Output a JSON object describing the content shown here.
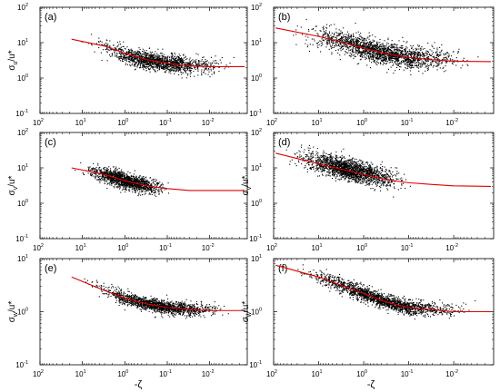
{
  "figure": {
    "xlabel_left": "-ζ",
    "xlabel_right": "-ζ"
  },
  "chart_data": [
    {
      "type": "scatter",
      "panel": "(a)",
      "ylabel": "σu/u*",
      "y_main": "σ",
      "y_sub": "u",
      "y_rest": "/u*",
      "xlabel": "",
      "x_scale": "log",
      "x_reversed": true,
      "xlim": [
        100,
        0.0013
      ],
      "y_scale": "log",
      "ylim": [
        0.1,
        100
      ],
      "x_ticks": [
        {
          "v": 100,
          "m": "10",
          "e": "2"
        },
        {
          "v": 10,
          "m": "10",
          "e": "1"
        },
        {
          "v": 1,
          "m": "10",
          "e": "0"
        },
        {
          "v": 0.1,
          "m": "10",
          "e": "-1"
        },
        {
          "v": 0.01,
          "m": "10",
          "e": "-2"
        }
      ],
      "y_ticks": [
        {
          "v": 0.1,
          "m": "10",
          "e": "-1"
        },
        {
          "v": 1,
          "m": "10",
          "e": "0"
        },
        {
          "v": 10,
          "m": "10",
          "e": "1"
        },
        {
          "v": 100,
          "m": "10",
          "e": "2"
        }
      ],
      "scatter": {
        "x_range": [
          18,
          0.0015
        ],
        "trend": [
          [
            18,
            13
          ],
          [
            3,
            8
          ],
          [
            1,
            4.5
          ],
          [
            0.3,
            3.2
          ],
          [
            0.1,
            2.6
          ],
          [
            0.03,
            2.2
          ],
          [
            0.0015,
            2.1
          ]
        ],
        "spread_decades": 0.12,
        "count": 1600
      },
      "fit": {
        "color": "#e00000",
        "x": [
          18,
          3,
          1,
          0.3,
          0.1,
          0.03,
          0.01,
          0.0015
        ],
        "y": [
          12.5,
          8,
          5,
          3.3,
          2.6,
          2.2,
          2.1,
          2.1
        ]
      }
    },
    {
      "type": "scatter",
      "panel": "(b)",
      "ylabel": "",
      "x_scale": "log",
      "x_reversed": true,
      "xlim": [
        100,
        0.0013
      ],
      "y_scale": "log",
      "ylim": [
        0.1,
        100
      ],
      "x_ticks": [
        {
          "v": 100,
          "m": "10",
          "e": "2"
        },
        {
          "v": 10,
          "m": "10",
          "e": "1"
        },
        {
          "v": 1,
          "m": "10",
          "e": "0"
        },
        {
          "v": 0.1,
          "m": "10",
          "e": "-1"
        },
        {
          "v": 0.01,
          "m": "10",
          "e": "-2"
        }
      ],
      "y_ticks": [
        {
          "v": 0.1,
          "m": "10",
          "e": "-1"
        },
        {
          "v": 1,
          "m": "10",
          "e": "0"
        },
        {
          "v": 10,
          "m": "10",
          "e": "1"
        },
        {
          "v": 100,
          "m": "10",
          "e": "2"
        }
      ],
      "scatter": {
        "x_range": [
          90,
          0.0015
        ],
        "trend": [
          [
            90,
            30
          ],
          [
            10,
            16
          ],
          [
            1,
            7
          ],
          [
            0.3,
            4.8
          ],
          [
            0.1,
            3.8
          ],
          [
            0.03,
            3.3
          ],
          [
            0.0015,
            3.0
          ]
        ],
        "spread_decades": 0.16,
        "count": 2000
      },
      "fit": {
        "color": "#e00000",
        "x": [
          90,
          10,
          1,
          0.3,
          0.1,
          0.03,
          0.01,
          0.0015
        ],
        "y": [
          26,
          15,
          7,
          4.8,
          3.8,
          3.3,
          3.0,
          2.9
        ]
      }
    },
    {
      "type": "scatter",
      "panel": "(c)",
      "ylabel": "σv/u*",
      "y_main": "σ",
      "y_sub": "v",
      "y_rest": "/u*",
      "x_scale": "log",
      "x_reversed": true,
      "xlim": [
        100,
        0.0013
      ],
      "y_scale": "log",
      "ylim": [
        0.1,
        100
      ],
      "x_ticks": [
        {
          "v": 100,
          "m": "10",
          "e": "2"
        },
        {
          "v": 10,
          "m": "10",
          "e": "1"
        },
        {
          "v": 1,
          "m": "10",
          "e": "0"
        },
        {
          "v": 0.1,
          "m": "10",
          "e": "-1"
        },
        {
          "v": 0.01,
          "m": "10",
          "e": "-2"
        }
      ],
      "y_ticks": [
        {
          "v": 0.1,
          "m": "10",
          "e": "-1"
        },
        {
          "v": 1,
          "m": "10",
          "e": "0"
        },
        {
          "v": 10,
          "m": "10",
          "e": "1"
        },
        {
          "v": 100,
          "m": "10",
          "e": "2"
        }
      ],
      "scatter": {
        "x_range": [
          18,
          0.05
        ],
        "trend": [
          [
            18,
            10
          ],
          [
            3,
            6.5
          ],
          [
            1,
            4.3
          ],
          [
            0.3,
            3.1
          ],
          [
            0.1,
            2.7
          ],
          [
            0.05,
            2.5
          ]
        ],
        "spread_decades": 0.11,
        "count": 1500
      },
      "fit": {
        "color": "#e00000",
        "x": [
          18,
          3,
          1,
          0.3,
          0.1,
          0.03,
          0.01,
          0.0015
        ],
        "y": [
          10,
          6.5,
          4.3,
          3.1,
          2.6,
          2.3,
          2.3,
          2.3
        ]
      }
    },
    {
      "type": "scatter",
      "panel": "(d)",
      "ylabel": "σv/u*",
      "y_main": "σ",
      "y_sub": "v",
      "y_rest": "/u*",
      "x_scale": "log",
      "x_reversed": true,
      "xlim": [
        100,
        0.0013
      ],
      "y_scale": "log",
      "ylim": [
        0.1,
        100
      ],
      "x_ticks": [
        {
          "v": 100,
          "m": "10",
          "e": "2"
        },
        {
          "v": 10,
          "m": "10",
          "e": "1"
        },
        {
          "v": 1,
          "m": "10",
          "e": "0"
        },
        {
          "v": 0.1,
          "m": "10",
          "e": "-1"
        },
        {
          "v": 0.01,
          "m": "10",
          "e": "-2"
        }
      ],
      "y_ticks": [
        {
          "v": 0.1,
          "m": "10",
          "e": "-1"
        },
        {
          "v": 1,
          "m": "10",
          "e": "0"
        },
        {
          "v": 10,
          "m": "10",
          "e": "1"
        },
        {
          "v": 100,
          "m": "10",
          "e": "2"
        }
      ],
      "scatter": {
        "x_range": [
          90,
          0.05
        ],
        "trend": [
          [
            90,
            30
          ],
          [
            10,
            14
          ],
          [
            1,
            7
          ],
          [
            0.3,
            5
          ],
          [
            0.1,
            4.2
          ],
          [
            0.05,
            3.9
          ]
        ],
        "spread_decades": 0.15,
        "count": 1900
      },
      "fit": {
        "color": "#e00000",
        "x": [
          90,
          10,
          1,
          0.3,
          0.1,
          0.03,
          0.01,
          0.0015
        ],
        "y": [
          26,
          13,
          6.5,
          4.6,
          3.8,
          3.4,
          3.1,
          3.0
        ]
      }
    },
    {
      "type": "scatter",
      "panel": "(e)",
      "ylabel": "σw/u*",
      "y_main": "σ",
      "y_sub": "w",
      "y_rest": "/u*",
      "x_scale": "log",
      "x_reversed": true,
      "xlim": [
        100,
        0.0013
      ],
      "y_scale": "log",
      "ylim": [
        0.1,
        10
      ],
      "x_ticks": [
        {
          "v": 100,
          "m": "10",
          "e": "2"
        },
        {
          "v": 10,
          "m": "10",
          "e": "1"
        },
        {
          "v": 1,
          "m": "10",
          "e": "0"
        },
        {
          "v": 0.1,
          "m": "10",
          "e": "-1"
        },
        {
          "v": 0.01,
          "m": "10",
          "e": "-2"
        }
      ],
      "y_ticks": [
        {
          "v": 0.1,
          "m": "10",
          "e": "-1"
        },
        {
          "v": 1,
          "m": "10",
          "e": "0"
        },
        {
          "v": 10,
          "m": "10",
          "e": "1"
        }
      ],
      "scatter": {
        "x_range": [
          18,
          0.0015
        ],
        "trend": [
          [
            18,
            4.5
          ],
          [
            3,
            2.5
          ],
          [
            1,
            1.8
          ],
          [
            0.3,
            1.4
          ],
          [
            0.1,
            1.2
          ],
          [
            0.03,
            1.1
          ],
          [
            0.0015,
            1.1
          ]
        ],
        "spread_decades": 0.06,
        "count": 1600
      },
      "fit": {
        "color": "#e00000",
        "x": [
          18,
          3,
          1,
          0.3,
          0.1,
          0.03,
          0.01,
          0.0015
        ],
        "y": [
          4.5,
          2.5,
          1.8,
          1.4,
          1.2,
          1.1,
          1.05,
          1.05
        ]
      }
    },
    {
      "type": "scatter",
      "panel": "(f)",
      "ylabel": "σw/u*",
      "y_main": "σ",
      "y_sub": "w",
      "y_rest": "/u*",
      "x_scale": "log",
      "x_reversed": true,
      "xlim": [
        100,
        0.0013
      ],
      "y_scale": "log",
      "ylim": [
        0.1,
        10
      ],
      "x_ticks": [
        {
          "v": 100,
          "m": "10",
          "e": "2"
        },
        {
          "v": 10,
          "m": "10",
          "e": "1"
        },
        {
          "v": 1,
          "m": "10",
          "e": "0"
        },
        {
          "v": 0.1,
          "m": "10",
          "e": "-1"
        },
        {
          "v": 0.01,
          "m": "10",
          "e": "-2"
        }
      ],
      "y_ticks": [
        {
          "v": 0.1,
          "m": "10",
          "e": "-1"
        },
        {
          "v": 1,
          "m": "10",
          "e": "0"
        },
        {
          "v": 10,
          "m": "10",
          "e": "1"
        }
      ],
      "scatter": {
        "x_range": [
          90,
          0.0015
        ],
        "trend": [
          [
            90,
            8
          ],
          [
            10,
            4.5
          ],
          [
            1,
            2.2
          ],
          [
            0.3,
            1.5
          ],
          [
            0.1,
            1.2
          ],
          [
            0.03,
            1.1
          ],
          [
            0.0015,
            1.0
          ]
        ],
        "spread_decades": 0.07,
        "count": 1900
      },
      "fit": {
        "color": "#e00000",
        "x": [
          90,
          10,
          1,
          0.3,
          0.1,
          0.03,
          0.01,
          0.0015
        ],
        "y": [
          7.5,
          4.5,
          2.2,
          1.5,
          1.2,
          1.1,
          1.0,
          1.0
        ]
      }
    }
  ]
}
